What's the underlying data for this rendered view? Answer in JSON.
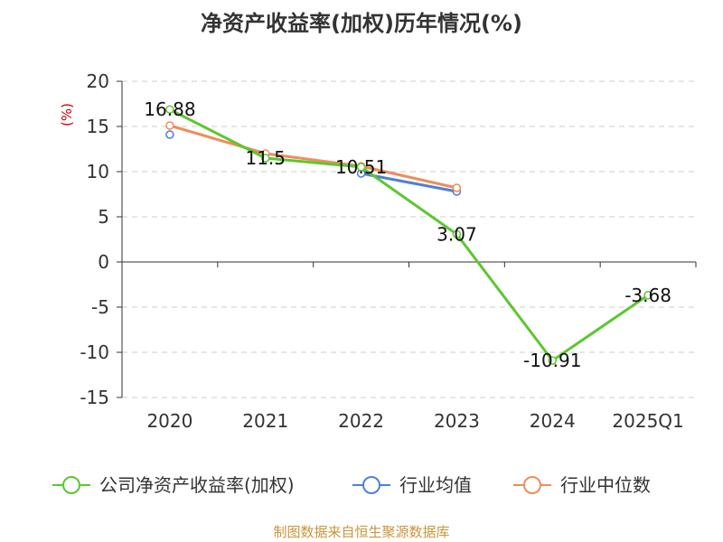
{
  "colors": {
    "company": "#5cc72f",
    "industry_avg": "#4f7fd8",
    "industry_median": "#f08c5a",
    "unit": "#cc0000",
    "footer": "#c8953c",
    "grid": "#cccccc",
    "axis": "#333333"
  },
  "footer": {
    "source": "制图数据来自恒生聚源数据库"
  },
  "chart_data": {
    "type": "line",
    "title": "净资产收益率(加权)历年情况(%)",
    "ylabel": "(%)",
    "xlabel": "",
    "categories": [
      "2020",
      "2021",
      "2022",
      "2023",
      "2024",
      "2025Q1"
    ],
    "ylim": [
      -15,
      20
    ],
    "yticks": [
      20,
      15,
      10,
      5,
      0,
      -5,
      -10,
      -15
    ],
    "grid": true,
    "legend_position": "bottom",
    "series": [
      {
        "name": "公司净资产收益率(加权)",
        "color_key": "company",
        "values": [
          16.88,
          11.5,
          10.51,
          3.07,
          -10.91,
          -3.68
        ],
        "labels": [
          "16.88",
          "11.5",
          "10.51",
          "3.07",
          "-10.91",
          "-3.68"
        ]
      },
      {
        "name": "行业均值",
        "color_key": "industry_avg",
        "values": [
          14.1,
          null,
          9.8,
          7.8,
          null,
          null
        ]
      },
      {
        "name": "行业中位数",
        "color_key": "industry_median",
        "values": [
          15.1,
          12.0,
          10.6,
          8.2,
          null,
          null
        ]
      }
    ]
  }
}
